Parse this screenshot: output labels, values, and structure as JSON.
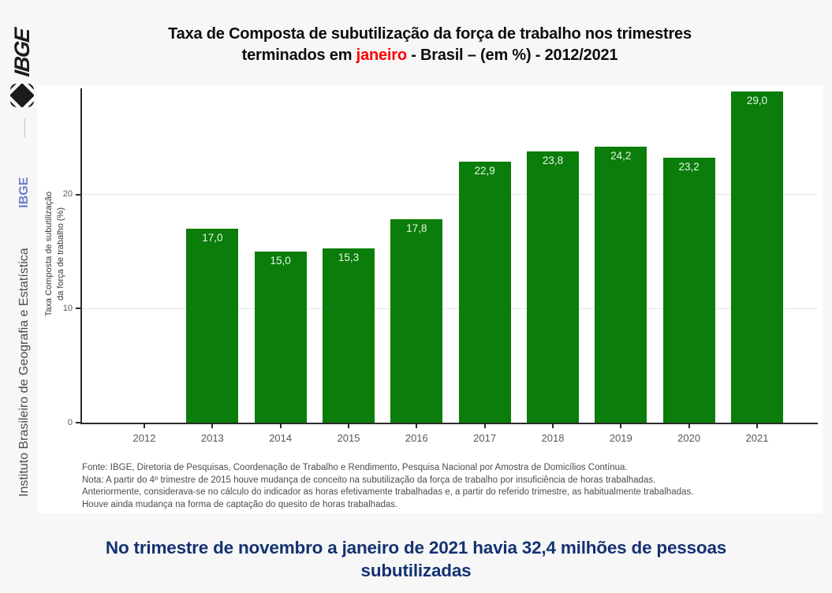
{
  "sidebar": {
    "logo_text": "IBGE",
    "org_name": "Instituto Brasileiro de Geografia e Estatística",
    "org_abbr": "IBGE"
  },
  "title": {
    "line1": "Taxa de Composta de subutilização da força de trabalho nos trimestres",
    "line2_pre": "terminados em ",
    "line2_highlight": "janeiro",
    "line2_post": " - Brasil – (em %) - 2012/2021",
    "highlight_color": "#ff0000"
  },
  "chart_data": {
    "type": "bar",
    "title": "Taxa de Composta de subutilização da força de trabalho nos trimestres terminados em janeiro - Brasil – (em %) - 2012/2021",
    "categories": [
      "2012",
      "2013",
      "2014",
      "2015",
      "2016",
      "2017",
      "2018",
      "2019",
      "2020",
      "2021"
    ],
    "values": [
      null,
      17.0,
      15.0,
      15.3,
      17.8,
      22.9,
      23.8,
      24.2,
      23.2,
      29.0
    ],
    "labels": [
      "",
      "17,0",
      "15,0",
      "15,3",
      "17,8",
      "22,9",
      "23,8",
      "24,2",
      "23,2",
      "29,0"
    ],
    "xlabel": "",
    "ylabel_line1": "Taxa Composta de subutilização",
    "ylabel_line2": "da força de trabalho (%)",
    "yticks": [
      0,
      10,
      20
    ],
    "ylim": [
      0,
      29.3
    ],
    "grid": true,
    "legend": "none",
    "bar_color": "#0a7d0a",
    "label_color": "#e9f7e9"
  },
  "footer": {
    "lines": [
      "Fonte: IBGE, Diretoria de Pesquisas, Coordenação de Trabalho e Rendimento, Pesquisa Nacional por Amostra de Domicílios Contínua.",
      "Nota: A partir do 4º trimestre de 2015 houve mudança de conceito na subutilização da força de trabalho por insuficiência de horas trabalhadas.",
      "Anteriormente, considerava-se no cálculo do indicador as horas efetivamente trabalhadas e, a partir do referido trimestre, as habitualmente trabalhadas.",
      "Houve ainda mudança na forma de captação do quesito de horas trabalhadas."
    ]
  },
  "statement": {
    "line1": "No trimestre de novembro a janeiro de 2021 havia 32,4 milhões de pessoas",
    "line2": "subutilizadas"
  }
}
